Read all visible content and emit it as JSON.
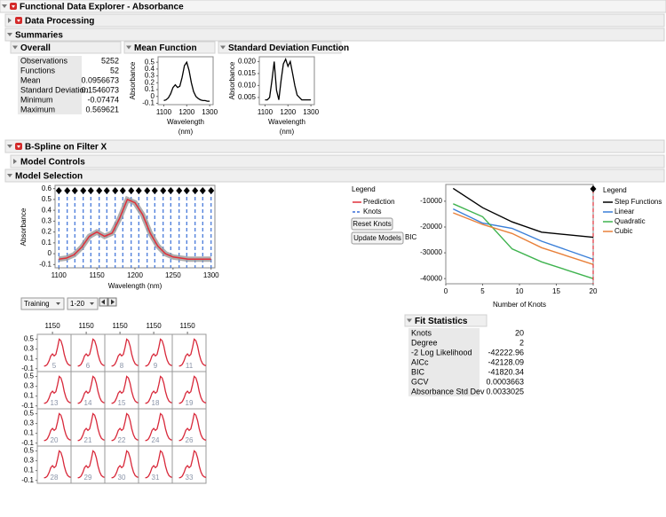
{
  "header": {
    "title": "Functional Data Explorer - Absorbance"
  },
  "sections": {
    "data_processing": "Data Processing",
    "summaries": "Summaries",
    "bspline": "B-Spline on Filter X",
    "model_controls": "Model Controls",
    "model_selection": "Model Selection"
  },
  "overall": {
    "title": "Overall",
    "rows": [
      [
        "Observations",
        "5252"
      ],
      [
        "Functions",
        "52"
      ],
      [
        "Mean",
        "0.0956673"
      ],
      [
        "Standard Deviation",
        "0.1546073"
      ],
      [
        "Minimum",
        "-0.07474"
      ],
      [
        "Maximum",
        "0.569621"
      ]
    ]
  },
  "mean_function": {
    "type": "line",
    "title": "Mean Function",
    "y_label": "Absorbance",
    "x_label_lines": [
      "Wavelength",
      "(nm)"
    ],
    "x": [
      1100,
      1110,
      1120,
      1130,
      1140,
      1150,
      1160,
      1170,
      1180,
      1190,
      1200,
      1210,
      1220,
      1230,
      1240,
      1250,
      1260,
      1270,
      1280,
      1290,
      1300
    ],
    "values": [
      -0.06,
      -0.05,
      -0.02,
      0.04,
      0.13,
      0.17,
      0.13,
      0.15,
      0.28,
      0.45,
      0.5,
      0.38,
      0.2,
      0.07,
      0.0,
      -0.03,
      -0.05,
      -0.06,
      -0.06,
      -0.07,
      -0.07
    ],
    "color": "#000000",
    "xlim": [
      1075,
      1315
    ],
    "ylim": [
      -0.12,
      0.58
    ],
    "xticks": [
      1100,
      1200,
      1300
    ],
    "yticks": [
      0.5,
      0.4,
      0.3,
      0.2,
      0.1,
      0,
      -0.1
    ]
  },
  "sd_function": {
    "type": "line",
    "title": "Standard Deviation Function",
    "y_label": "Absorbance",
    "x_label_lines": [
      "Wavelength",
      "(nm)"
    ],
    "x": [
      1100,
      1110,
      1120,
      1130,
      1140,
      1150,
      1160,
      1170,
      1180,
      1190,
      1200,
      1210,
      1220,
      1230,
      1240,
      1250,
      1260,
      1270,
      1280,
      1290,
      1300
    ],
    "values": [
      0.004,
      0.004,
      0.005,
      0.012,
      0.02,
      0.008,
      0.004,
      0.012,
      0.019,
      0.021,
      0.018,
      0.02,
      0.015,
      0.01,
      0.006,
      0.005,
      0.004,
      0.004,
      0.004,
      0.004,
      0.004
    ],
    "color": "#000000",
    "xlim": [
      1075,
      1315
    ],
    "ylim": [
      0.002,
      0.022
    ],
    "xticks": [
      1100,
      1200,
      1300
    ],
    "yticks": [
      {
        "value": 0.02,
        "label": "0.020"
      },
      0.015,
      {
        "value": 0.01,
        "label": "0.010"
      },
      0.005
    ]
  },
  "model_plot": {
    "type": "line",
    "y_label": "Absorbance",
    "x_label": "Wavelength (nm)",
    "x": [
      1100,
      1110,
      1120,
      1130,
      1140,
      1150,
      1160,
      1170,
      1180,
      1190,
      1200,
      1210,
      1220,
      1230,
      1240,
      1250,
      1260,
      1270,
      1280,
      1290,
      1300
    ],
    "values": [
      -0.05,
      -0.04,
      -0.01,
      0.06,
      0.16,
      0.2,
      0.16,
      0.19,
      0.33,
      0.5,
      0.47,
      0.36,
      0.19,
      0.07,
      0.0,
      -0.03,
      -0.04,
      -0.05,
      -0.05,
      -0.05,
      -0.05
    ],
    "color": "#e0303a",
    "band_color": "#9a9a9a",
    "knots": [
      1100,
      1111,
      1121,
      1132,
      1142,
      1153,
      1163,
      1174,
      1184,
      1195,
      1205,
      1216,
      1226,
      1237,
      1247,
      1258,
      1268,
      1279,
      1289,
      1300
    ],
    "knot_color": "#3a6fd8",
    "xlim": [
      1095,
      1305
    ],
    "ylim": [
      -0.13,
      0.63
    ],
    "xticks": [
      1100,
      1150,
      1200,
      1250,
      1300
    ],
    "yticks": [
      0.6,
      0.5,
      0.4,
      0.3,
      0.2,
      0.1,
      0,
      -0.1
    ]
  },
  "model_legend": {
    "title": "Legend",
    "items": [
      "Prediction",
      "Knots"
    ],
    "buttons": [
      "Reset Knots",
      "Update Models"
    ]
  },
  "bic_chart": {
    "type": "line",
    "y_label": "BIC",
    "x_label": "Number of Knots",
    "legend_title": "Legend",
    "x": [
      1,
      5,
      9,
      13,
      20
    ],
    "selected_x": 20,
    "xlim": [
      0,
      20
    ],
    "ylim": [
      -42000,
      -3500
    ],
    "xticks": [
      0,
      5,
      10,
      15,
      20
    ],
    "yticks": [
      -10000,
      -20000,
      -30000,
      -40000
    ],
    "series": [
      {
        "name": "Step Functions",
        "color": "#000000",
        "values": [
          -5000,
          -12500,
          -18000,
          -22000,
          -24000
        ]
      },
      {
        "name": "Linear",
        "color": "#3a7fd8",
        "values": [
          -13000,
          -18500,
          -20500,
          -25500,
          -32500
        ]
      },
      {
        "name": "Quadratic",
        "color": "#3fb34f",
        "values": [
          -11000,
          -16000,
          -28500,
          -33500,
          -40000
        ]
      },
      {
        "name": "Cubic",
        "color": "#e8803a",
        "values": [
          -14500,
          -19000,
          -22500,
          -28000,
          -34500
        ]
      }
    ]
  },
  "controls": {
    "set": "Training",
    "range": "1-20"
  },
  "panels": {
    "column_xticks": [
      1150,
      1150,
      1150,
      1150,
      1150
    ],
    "row_yticks": [
      [
        0.5,
        0.3,
        0.1,
        -0.1
      ],
      [
        0.5,
        0.3,
        0.1,
        -0.1
      ],
      [
        0.5,
        0.3,
        0.1,
        -0.1
      ],
      [
        0.5,
        0.3,
        0.1,
        -0.1
      ]
    ],
    "ids": [
      [
        5,
        6,
        8,
        9,
        11
      ],
      [
        13,
        14,
        15,
        18,
        19
      ],
      [
        20,
        21,
        22,
        24,
        26
      ],
      [
        28,
        29,
        30,
        31,
        33
      ]
    ],
    "xlim": [
      1060,
      1260
    ],
    "ylim": [
      -0.16,
      0.6
    ],
    "color": "#d8283a"
  },
  "fit_statistics": {
    "title": "Fit Statistics",
    "rows": [
      [
        "Knots",
        "20"
      ],
      [
        "Degree",
        "2"
      ],
      [
        "-2 Log Likelihood",
        "-42222.96"
      ],
      [
        "AICc",
        "-42128.09"
      ],
      [
        "BIC",
        "-41820.34"
      ],
      [
        "GCV",
        "0.0003663"
      ],
      [
        "Absorbance Std Dev",
        "0.0033025"
      ]
    ]
  }
}
